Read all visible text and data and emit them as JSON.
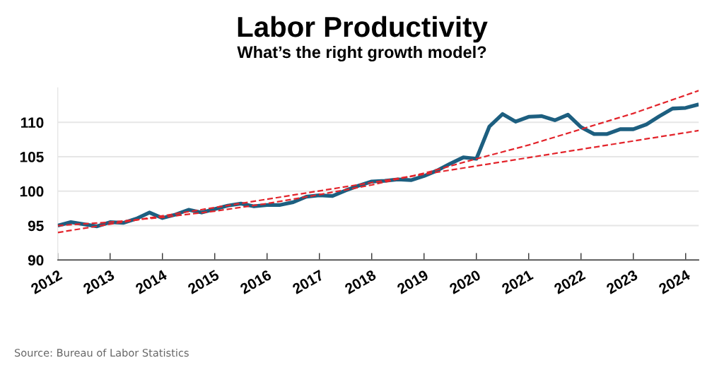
{
  "chart_data": {
    "type": "line",
    "title": "Labor Productivity",
    "subtitle": "What’s the right growth model?",
    "annotations": [
      "Source: Bureau of Labor Statistics"
    ],
    "x": [
      2012,
      2012.25,
      2012.5,
      2012.75,
      2013,
      2013.25,
      2013.5,
      2013.75,
      2014,
      2014.25,
      2014.5,
      2014.75,
      2015,
      2015.25,
      2015.5,
      2015.75,
      2016,
      2016.25,
      2016.5,
      2016.75,
      2017,
      2017.25,
      2017.5,
      2017.75,
      2018,
      2018.25,
      2018.5,
      2018.75,
      2019,
      2019.25,
      2019.5,
      2019.75,
      2020,
      2020.25,
      2020.5,
      2020.75,
      2021,
      2021.25,
      2021.5,
      2021.75,
      2022,
      2022.25,
      2022.5,
      2022.75,
      2023,
      2023.25,
      2023.5,
      2023.75,
      2024,
      2024.25
    ],
    "series": [
      {
        "color": "#1d5f80",
        "line_style": "solid",
        "values": [
          95.0,
          95.5,
          95.2,
          94.9,
          95.5,
          95.4,
          96.0,
          96.9,
          96.1,
          96.6,
          97.3,
          96.9,
          97.4,
          97.9,
          98.2,
          97.8,
          98.0,
          98.0,
          98.4,
          99.2,
          99.4,
          99.3,
          100.1,
          100.8,
          101.4,
          101.5,
          101.7,
          101.6,
          102.2,
          103.0,
          104.0,
          104.9,
          104.7,
          109.4,
          111.2,
          110.1,
          110.8,
          110.9,
          110.3,
          111.1,
          109.3,
          108.3,
          108.3,
          109.0,
          109.0,
          109.7,
          110.9,
          112.0,
          112.1,
          112.6
        ]
      },
      {
        "type": "line",
        "color": "#e3242b",
        "line_style": "dashed",
        "x": [
          2012,
          2013,
          2014,
          2015,
          2016,
          2017,
          2018,
          2019,
          2020,
          2021,
          2022,
          2023,
          2024.25
        ],
        "values": [
          95.0,
          95.5,
          96.2,
          97.1,
          98.2,
          99.5,
          100.9,
          102.6,
          104.7,
          106.7,
          109.0,
          111.3,
          114.6
        ]
      },
      {
        "type": "line",
        "color": "#e3242b",
        "line_style": "dashed",
        "x": [
          2012,
          2024.25
        ],
        "values": [
          94.0,
          108.8
        ]
      }
    ],
    "xlim": [
      2012,
      2024.25
    ],
    "xticks": [
      2012,
      2013,
      2014,
      2015,
      2016,
      2017,
      2018,
      2019,
      2020,
      2021,
      2022,
      2023,
      2024
    ],
    "ylim": [
      90,
      115
    ],
    "yticks": [
      90,
      95,
      100,
      105,
      110
    ],
    "grid": "y"
  }
}
